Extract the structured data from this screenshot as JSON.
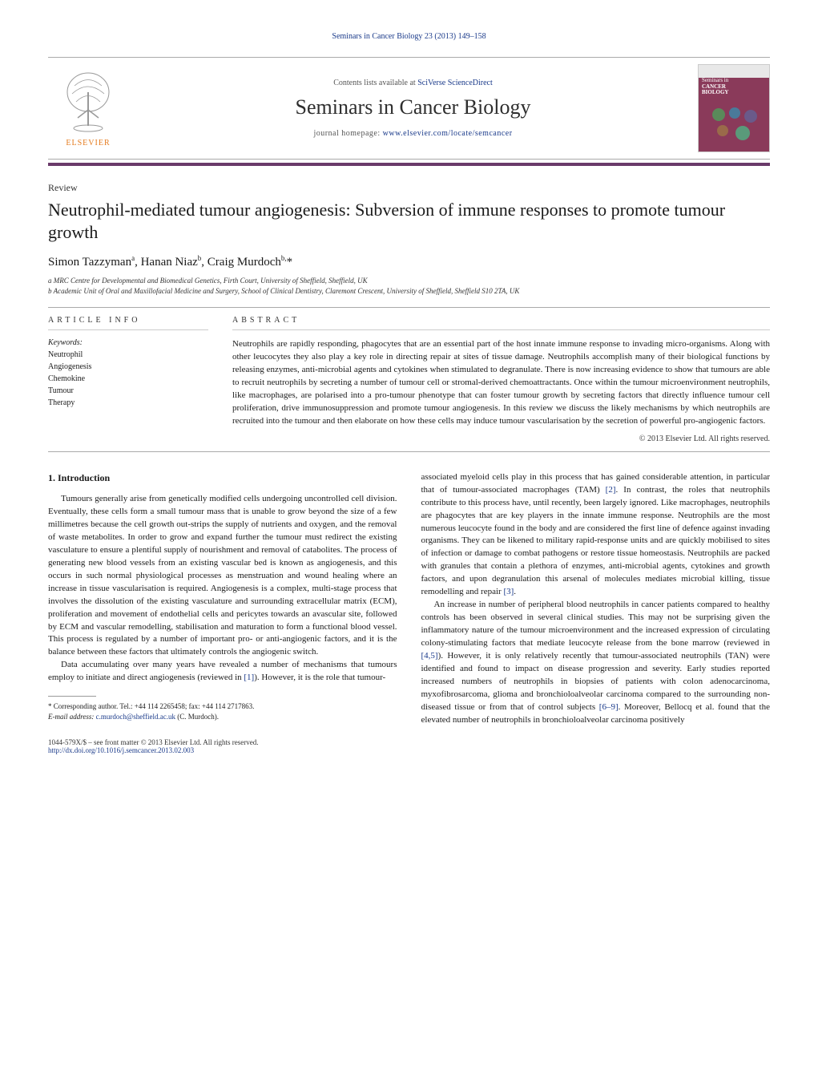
{
  "header": {
    "citation_prefix": "Seminars in Cancer Biology 23 (2013) 149–158",
    "citation_link_text": ""
  },
  "banner": {
    "contents_text": "Contents lists available at ",
    "contents_link": "SciVerse ScienceDirect",
    "journal_title": "Seminars in Cancer Biology",
    "homepage_label": "journal homepage: ",
    "homepage_link": "www.elsevier.com/locate/semcancer",
    "elsevier_label": "ELSEVIER",
    "cover_line1": "Seminars in",
    "cover_line2": "CANCER",
    "cover_line3": "BIOLOGY"
  },
  "article": {
    "type": "Review",
    "title": "Neutrophil-mediated tumour angiogenesis: Subversion of immune responses to promote tumour growth",
    "authors_html": "Simon Tazzyman<sup>a</sup>, Hanan Niaz<sup>b</sup>, Craig Murdoch<sup>b,</sup>*",
    "affiliations": [
      "a MRC Centre for Developmental and Biomedical Genetics, Firth Court, University of Sheffield, Sheffield, UK",
      "b Academic Unit of Oral and Maxillofacial Medicine and Surgery, School of Clinical Dentistry, Claremont Crescent, University of Sheffield, Sheffield S10 2TA, UK"
    ]
  },
  "info": {
    "heading": "article info",
    "keywords_label": "Keywords:",
    "keywords": [
      "Neutrophil",
      "Angiogenesis",
      "Chemokine",
      "Tumour",
      "Therapy"
    ]
  },
  "abstract": {
    "heading": "abstract",
    "text": "Neutrophils are rapidly responding, phagocytes that are an essential part of the host innate immune response to invading micro-organisms. Along with other leucocytes they also play a key role in directing repair at sites of tissue damage. Neutrophils accomplish many of their biological functions by releasing enzymes, anti-microbial agents and cytokines when stimulated to degranulate. There is now increasing evidence to show that tumours are able to recruit neutrophils by secreting a number of tumour cell or stromal-derived chemoattractants. Once within the tumour microenvironment neutrophils, like macrophages, are polarised into a pro-tumour phenotype that can foster tumour growth by secreting factors that directly influence tumour cell proliferation, drive immunosuppression and promote tumour angiogenesis. In this review we discuss the likely mechanisms by which neutrophils are recruited into the tumour and then elaborate on how these cells may induce tumour vascularisation by the secretion of powerful pro-angiogenic factors.",
    "copyright": "© 2013 Elsevier Ltd. All rights reserved."
  },
  "body": {
    "section1_heading": "1.  Introduction",
    "col1_p1": "Tumours generally arise from genetically modified cells undergoing uncontrolled cell division. Eventually, these cells form a small tumour mass that is unable to grow beyond the size of a few millimetres because the cell growth out-strips the supply of nutrients and oxygen, and the removal of waste metabolites. In order to grow and expand further the tumour must redirect the existing vasculature to ensure a plentiful supply of nourishment and removal of catabolites. The process of generating new blood vessels from an existing vascular bed is known as angiogenesis, and this occurs in such normal physiological processes as menstruation and wound healing where an increase in tissue vascularisation is required. Angiogenesis is a complex, multi-stage process that involves the dissolution of the existing vasculature and surrounding extracellular matrix (ECM), proliferation and movement of endothelial cells and pericytes towards an avascular site, followed by ECM and vascular remodelling, stabilisation and maturation to form a functional blood vessel. This process is regulated by a number of important pro- or anti-angiogenic factors, and it is the balance between these factors that ultimately controls the angiogenic switch.",
    "col1_p2_a": "Data accumulating over many years have revealed a number of mechanisms that tumours employ to initiate and direct angiogenesis (reviewed in ",
    "col1_p2_ref1": "[1]",
    "col1_p2_b": "). However, it is the role that tumour-",
    "col2_p1_a": "associated myeloid cells play in this process that has gained considerable attention, in particular that of tumour-associated macrophages (TAM) ",
    "col2_p1_ref2": "[2]",
    "col2_p1_b": ". In contrast, the roles that neutrophils contribute to this process have, until recently, been largely ignored. Like macrophages, neutrophils are phagocytes that are key players in the innate immune response. Neutrophils are the most numerous leucocyte found in the body and are considered the first line of defence against invading organisms. They can be likened to military rapid-response units and are quickly mobilised to sites of infection or damage to combat pathogens or restore tissue homeostasis. Neutrophils are packed with granules that contain a plethora of enzymes, anti-microbial agents, cytokines and growth factors, and upon degranulation this arsenal of molecules mediates microbial killing, tissue remodelling and repair ",
    "col2_p1_ref3": "[3]",
    "col2_p1_c": ".",
    "col2_p2_a": "An increase in number of peripheral blood neutrophils in cancer patients compared to healthy controls has been observed in several clinical studies. This may not be surprising given the inflammatory nature of the tumour microenvironment and the increased expression of circulating colony-stimulating factors that mediate leucocyte release from the bone marrow (reviewed in ",
    "col2_p2_ref45": "[4,5]",
    "col2_p2_b": "). However, it is only relatively recently that tumour-associated neutrophils (TAN) were identified and found to impact on disease progression and severity. Early studies reported increased numbers of neutrophils in biopsies of patients with colon adenocarcinoma, myxofibrosarcoma, glioma and bronchioloalveolar carcinoma compared to the surrounding non-diseased tissue or from that of control subjects ",
    "col2_p2_ref69": "[6–9]",
    "col2_p2_c": ". Moreover, Bellocq et al. found that the elevated number of neutrophils in bronchioloalveolar carcinoma positively"
  },
  "footnote": {
    "corr_label": "* Corresponding author. Tel.: +44 114 2265458; fax: +44 114 2717863.",
    "email_label": "E-mail address: ",
    "email": "c.murdoch@sheffield.ac.uk",
    "email_suffix": " (C. Murdoch)."
  },
  "footer": {
    "issn_line": "1044-579X/$ – see front matter © 2013 Elsevier Ltd. All rights reserved.",
    "doi": "http://dx.doi.org/10.1016/j.semcancer.2013.02.003"
  },
  "colors": {
    "link": "#1a3a8a",
    "elsevier_orange": "#e57b1e",
    "purple_bar": "#6a3a6a",
    "cover_bg": "#8a3a5a"
  }
}
